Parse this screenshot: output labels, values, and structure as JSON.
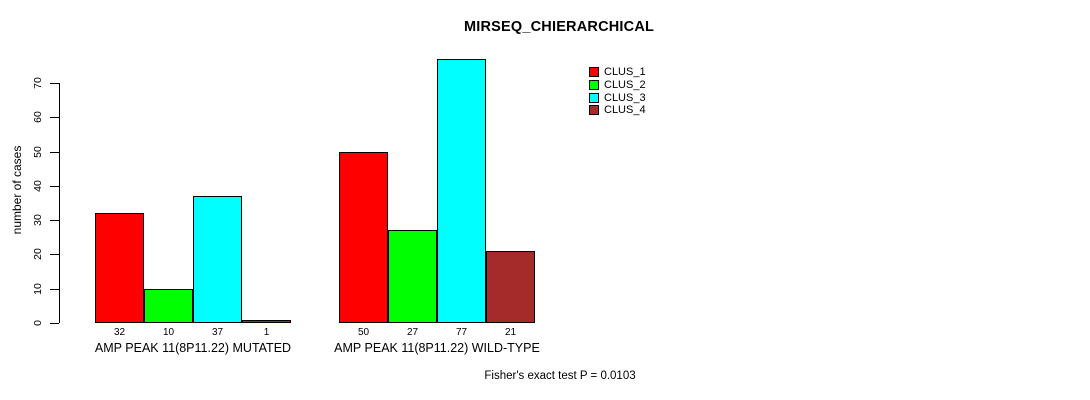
{
  "chart_data": {
    "type": "bar",
    "title": "MIRSEQ_CHIERARCHICAL",
    "ylabel": "number of cases",
    "xlabel": "",
    "ylim": [
      0,
      77
    ],
    "yticks": [
      0,
      10,
      20,
      30,
      40,
      50,
      60,
      70
    ],
    "categories": [
      "AMP PEAK 11(8P11.22) MUTATED",
      "AMP PEAK 11(8P11.22) WILD-TYPE"
    ],
    "series": [
      {
        "name": "CLUS_1",
        "color": "#FF0000",
        "values": [
          32,
          50
        ]
      },
      {
        "name": "CLUS_2",
        "color": "#00FF00",
        "values": [
          10,
          27
        ]
      },
      {
        "name": "CLUS_3",
        "color": "#00FFFF",
        "values": [
          37,
          77
        ]
      },
      {
        "name": "CLUS_4",
        "color": "#A52A2A",
        "values": [
          1,
          21
        ]
      }
    ],
    "bar_labels": [
      [
        32,
        10,
        37,
        1
      ],
      [
        50,
        27,
        77,
        21
      ]
    ],
    "legend_position": "top-right",
    "grid": false,
    "annotation": "Fisher's exact test P = 0.0103",
    "background_color": "#FFFFFF",
    "axis_color": "#000000"
  }
}
